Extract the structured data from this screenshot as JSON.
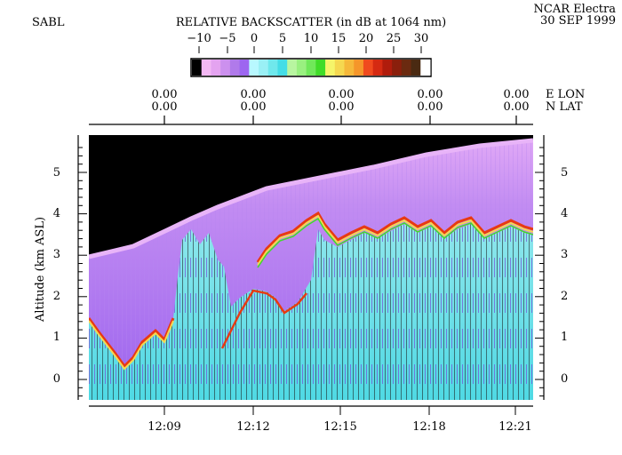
{
  "header": {
    "left_label": "SABL",
    "title": "RELATIVE BACKSCATTER (in dB at 1064 nm)",
    "platform": "NCAR Electra",
    "date": "30 SEP 1999"
  },
  "colorbar": {
    "ticks": [
      "−10",
      "−5",
      "0",
      "5",
      "10",
      "15",
      "20",
      "25",
      "30"
    ],
    "colors": [
      "#000000",
      "#f3b8f3",
      "#e4a3f0",
      "#cc90ee",
      "#b07aea",
      "#9d66f0",
      "#b8f8ff",
      "#9af0f5",
      "#6fe8ec",
      "#44dde6",
      "#b8f5a0",
      "#99f080",
      "#70e85a",
      "#40dc28",
      "#f5f56a",
      "#f5d850",
      "#f5b83a",
      "#f5962a",
      "#f04a1e",
      "#d52a12",
      "#b01c0c",
      "#8a1f0c",
      "#6b2a10",
      "#4a2a12",
      "#ffffff"
    ]
  },
  "position_axis": {
    "lon_values": [
      "0.00",
      "0.00",
      "0.00",
      "0.00",
      "0.00"
    ],
    "lat_values": [
      "0.00",
      "0.00",
      "0.00",
      "0.00",
      "0.00"
    ],
    "lon_label": "E LON",
    "lat_label": "N LAT"
  },
  "y_axis": {
    "label": "Altitude (km ASL)",
    "ticks": [
      "5",
      "4",
      "3",
      "2",
      "1",
      "0"
    ]
  },
  "x_axis": {
    "ticks": [
      "12:09",
      "12:12",
      "12:15",
      "12:18",
      "12:21"
    ]
  },
  "scene": {
    "aircraft_altitude_km": [
      2.95,
      3.7,
      4.2,
      5.35,
      5.75
    ],
    "aircraft_time": [
      "12:06",
      "12:09",
      "12:11",
      "12:15",
      "12:21"
    ],
    "colors": {
      "above_aircraft": "#000000",
      "near_aircraft": "#d69af4",
      "clear_air": "#a46ef0",
      "boundary_layer": "#6fe6ea",
      "cloud_top": "#e83a12",
      "signal_dropout": "#1a1a1a"
    }
  }
}
